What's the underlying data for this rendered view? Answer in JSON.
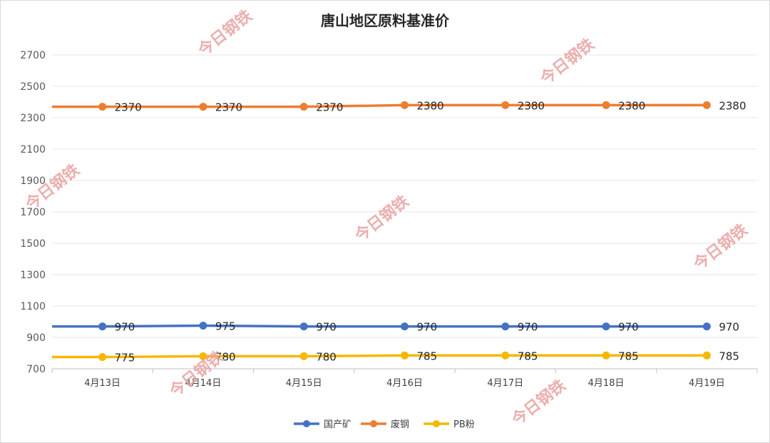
{
  "chart_data": {
    "type": "line",
    "title": "唐山地区原料基准价",
    "xlabel": "",
    "ylabel": "",
    "categories": [
      "4月13日",
      "4月14日",
      "4月15日",
      "4月16日",
      "4月17日",
      "4月18日",
      "4月19日"
    ],
    "yticks": [
      700,
      900,
      1100,
      1300,
      1500,
      1700,
      1900,
      2100,
      2300,
      2500,
      2700
    ],
    "ylim": [
      700,
      2800
    ],
    "grid": true,
    "legend_position": "bottom",
    "data_labels": true,
    "series": [
      {
        "name": "国产矿",
        "color": "#4472c4",
        "values": [
          970,
          975,
          970,
          970,
          970,
          970,
          970
        ]
      },
      {
        "name": "废钢",
        "color": "#ed7d31",
        "values": [
          2370,
          2370,
          2370,
          2380,
          2380,
          2380,
          2380
        ]
      },
      {
        "name": "PB粉",
        "color": "#f5b800",
        "values": [
          775,
          780,
          780,
          785,
          785,
          785,
          785
        ]
      }
    ]
  },
  "watermark": {
    "text": "今日钢铁",
    "color": "#e8a0a0"
  }
}
